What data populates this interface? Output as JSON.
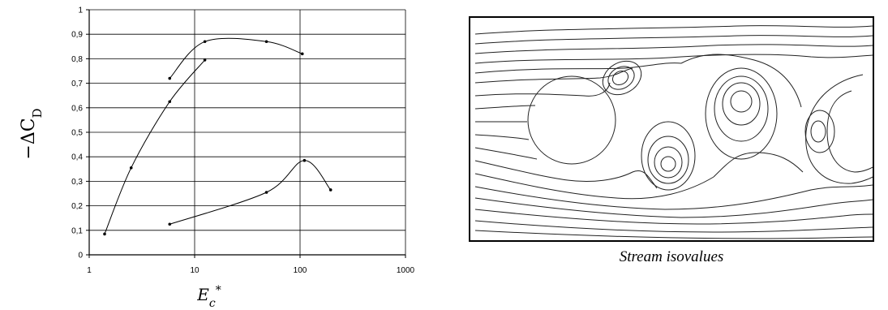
{
  "chart_data": {
    "type": "line",
    "x_scale": "log",
    "xlim": [
      1,
      1000
    ],
    "ylim": [
      0,
      1
    ],
    "grid": true,
    "x_ticks": [
      "1",
      "10",
      "100",
      "1000"
    ],
    "y_ticks": [
      "0",
      "0,1",
      "0,2",
      "0,3",
      "0,4",
      "0,5",
      "0,6",
      "0,7",
      "0,8",
      "0,9",
      "1"
    ],
    "ylabel": "−ΔC",
    "ylabel_sub": "D",
    "xlabel": "E",
    "xlabel_sub": "c",
    "xlabel_sup": "*",
    "series": [
      {
        "points": [
          [
            1.4,
            0.085
          ],
          [
            2.5,
            0.355
          ],
          [
            5.8,
            0.625
          ],
          [
            12.5,
            0.795
          ]
        ]
      },
      {
        "points": [
          [
            5.8,
            0.72
          ],
          [
            12.5,
            0.87
          ],
          [
            48,
            0.87
          ],
          [
            105,
            0.82
          ]
        ]
      },
      {
        "points": [
          [
            5.8,
            0.125
          ],
          [
            48,
            0.255
          ],
          [
            110,
            0.385
          ],
          [
            195,
            0.265
          ]
        ]
      }
    ]
  },
  "figure": {
    "caption": "Stream isovalues"
  }
}
